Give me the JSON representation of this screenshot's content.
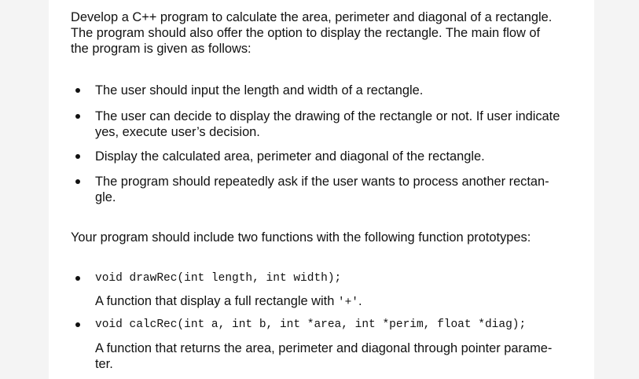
{
  "intro": {
    "lines": [
      "Develop a C++ program to calculate the area, perimeter and diagonal of a rectangle.",
      "The program should also offer the option to display the rectangle. The main flow of",
      "the program is given as follows:"
    ]
  },
  "steps": [
    {
      "lines": [
        "The user should input the length and width of a rectangle."
      ]
    },
    {
      "lines": [
        "The user can decide to display the drawing of the rectangle or not. If user indicate",
        "yes, execute user’s decision."
      ]
    },
    {
      "lines": [
        "Display the calculated area, perimeter and diagonal of the rectangle."
      ]
    },
    {
      "lines": [
        "The program should repeatedly ask if the user wants to process another rectan-",
        "gle."
      ]
    }
  ],
  "functions_intro": "Your program should include two functions with the following function prototypes:",
  "functions": [
    {
      "prototype": "void drawRec(int length, int width);",
      "description": {
        "before": "A function that display a full rectangle with ",
        "code": "'+'",
        "after": "."
      }
    },
    {
      "prototype": "void calcRec(int a, int b, int *area, int *perim, float *diag);",
      "description": {
        "lines": [
          "A function that returns the area, perimeter and diagonal through pointer parame-",
          "ter."
        ]
      }
    }
  ]
}
